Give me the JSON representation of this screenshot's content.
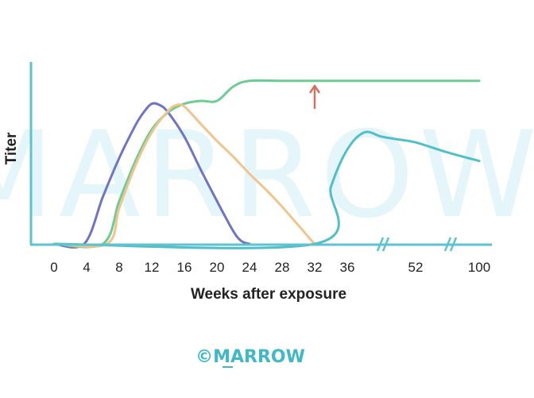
{
  "chart_data": {
    "type": "line",
    "xlabel": "Weeks after exposure",
    "ylabel": "Titer",
    "x_ticks": [
      "0",
      "4",
      "8",
      "12",
      "16",
      "20",
      "24",
      "28",
      "32",
      "36",
      "52",
      "100"
    ],
    "axis_breaks": "two breaks drawn on the x-axis (after 36 and after 52)",
    "y_scale": "relative titer, no numeric ticks",
    "series": [
      {
        "color": "#6f74c4",
        "x": [
          0,
          3.7,
          6,
          8,
          10,
          11,
          12,
          13,
          14,
          16,
          18,
          20,
          22,
          23,
          24
        ],
        "y": [
          0,
          0,
          33,
          60,
          83,
          92,
          98,
          97,
          92,
          75,
          52,
          30,
          9,
          2,
          0
        ]
      },
      {
        "color": "#6ccd94",
        "x": [
          0,
          6,
          8,
          10,
          12,
          14,
          16,
          18,
          20,
          22,
          24,
          28,
          32,
          36,
          52,
          100
        ],
        "y": [
          0,
          0,
          30,
          58,
          80,
          92,
          98,
          100,
          100,
          110,
          114,
          114,
          114,
          114,
          114,
          114
        ]
      },
      {
        "color": "#f2c48d",
        "x": [
          0,
          6.5,
          8,
          10,
          12,
          14,
          15,
          16,
          18,
          20,
          22,
          24,
          26,
          28,
          30,
          31.5,
          32
        ],
        "y": [
          0,
          0,
          25,
          55,
          78,
          93,
          97,
          96,
          84,
          72,
          61,
          49,
          38,
          26,
          13,
          3,
          0
        ]
      },
      {
        "color": "#51bfcb",
        "x": [
          0,
          32,
          34,
          36,
          40,
          44,
          48,
          52,
          76,
          100
        ],
        "y": [
          0,
          0,
          40,
          66,
          78,
          75,
          73,
          71,
          64,
          58
        ]
      }
    ],
    "annotations": [
      {
        "type": "arrow",
        "direction": "up",
        "color": "#d9705f",
        "x": 32,
        "y": 105
      }
    ],
    "watermark": "MARROW",
    "credit": "©MARROW"
  }
}
